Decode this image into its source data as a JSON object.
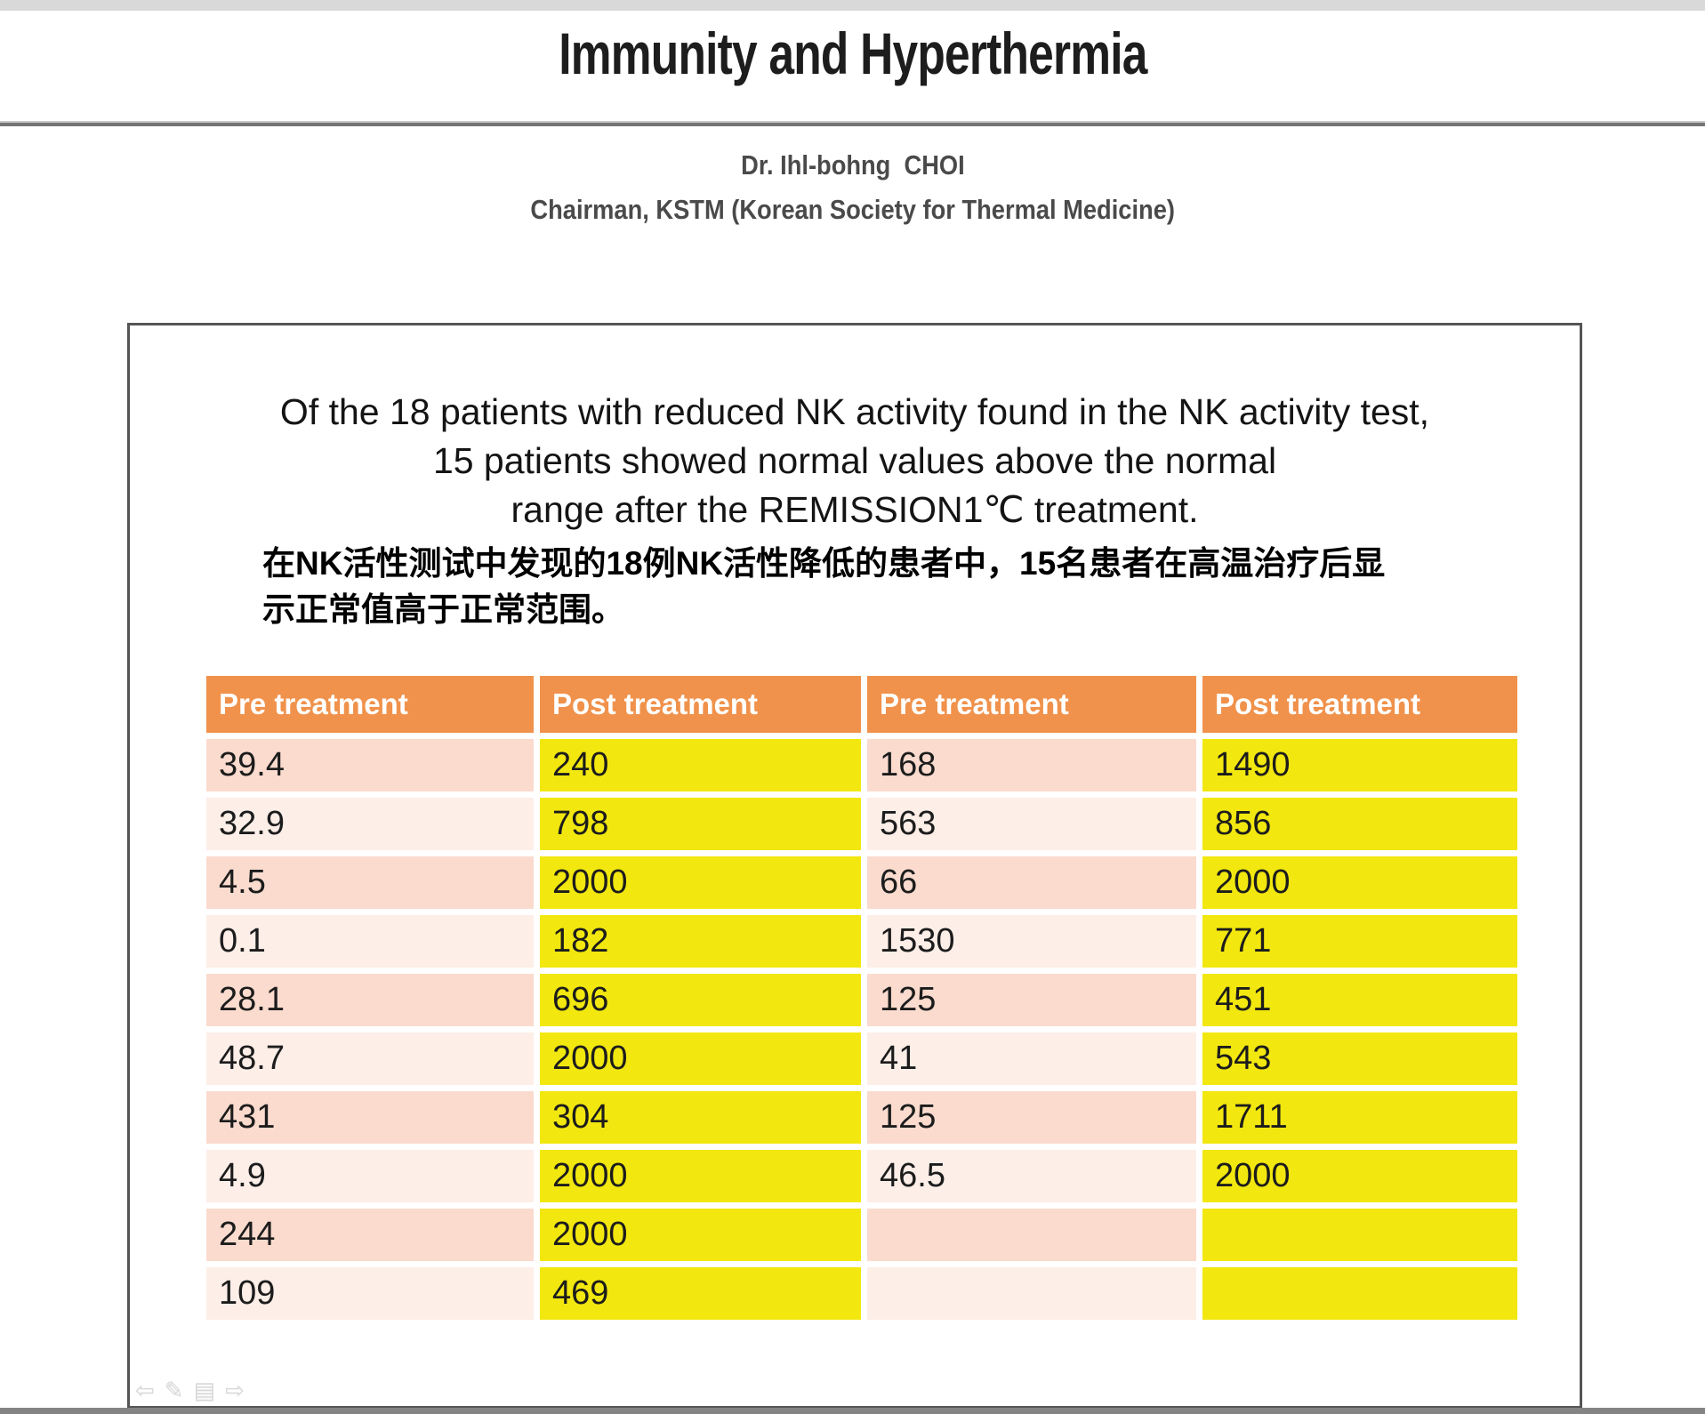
{
  "page": {
    "title": "Immunity and Hyperthermia",
    "author": {
      "name": "Dr. Ihl-bohng  CHOI",
      "affiliation": "Chairman, KSTM (Korean Society for Thermal Medicine)"
    }
  },
  "summary": {
    "english_lines": [
      "Of the 18 patients with reduced NK activity found in the NK activity test,",
      "15 patients showed normal values above the normal",
      "range after the REMISSION1℃ treatment."
    ],
    "chinese_lines": [
      "在NK活性测试中发现的18例NK活性降低的患者中，15名患者在高温治疗后显",
      "示正常值高于正常范围。"
    ]
  },
  "table": {
    "headers": [
      "Pre treatment",
      "Post treatment",
      "Pre treatment",
      "Post treatment"
    ],
    "rows": [
      {
        "cells": [
          {
            "text": "39.4",
            "red": false
          },
          {
            "text": "240",
            "red": false
          },
          {
            "text": "168",
            "red": false
          },
          {
            "text": "1490",
            "red": true
          }
        ]
      },
      {
        "cells": [
          {
            "text": "32.9",
            "red": false
          },
          {
            "text": "798",
            "red": true
          },
          {
            "text": "563",
            "red": false
          },
          {
            "text": "856",
            "red": true
          }
        ]
      },
      {
        "cells": [
          {
            "text": "4.5",
            "red": false
          },
          {
            "text": "2000",
            "red": true
          },
          {
            "text": "66",
            "red": false
          },
          {
            "text": "2000",
            "red": true
          }
        ]
      },
      {
        "cells": [
          {
            "text": "0.1",
            "red": false
          },
          {
            "text": "182",
            "red": false
          },
          {
            "text": "1530",
            "red": false
          },
          {
            "text": "771",
            "red": true
          }
        ]
      },
      {
        "cells": [
          {
            "text": "28.1",
            "red": false
          },
          {
            "text": "696",
            "red": true
          },
          {
            "text": "125",
            "red": false
          },
          {
            "text": "451",
            "red": true
          }
        ]
      },
      {
        "cells": [
          {
            "text": "48.7",
            "red": false
          },
          {
            "text": "2000",
            "red": true
          },
          {
            "text": "41",
            "red": false
          },
          {
            "text": "543",
            "red": true
          }
        ]
      },
      {
        "cells": [
          {
            "text": "431",
            "red": false
          },
          {
            "text": "304",
            "red": false
          },
          {
            "text": "125",
            "red": false
          },
          {
            "text": "1711",
            "red": true
          }
        ]
      },
      {
        "cells": [
          {
            "text": "4.9",
            "red": false
          },
          {
            "text": "2000",
            "red": true
          },
          {
            "text": "46.5",
            "red": false
          },
          {
            "text": "2000",
            "red": true
          }
        ]
      },
      {
        "cells": [
          {
            "text": "244",
            "red": false
          },
          {
            "text": "2000",
            "red": true
          },
          {
            "text": "",
            "red": false
          },
          {
            "text": "",
            "red": false
          }
        ]
      },
      {
        "cells": [
          {
            "text": "109",
            "red": false
          },
          {
            "text": "469",
            "red": true
          },
          {
            "text": "",
            "red": false
          },
          {
            "text": "",
            "red": false
          }
        ]
      }
    ]
  },
  "chart_data": {
    "type": "table",
    "columns": [
      "Pre treatment",
      "Post treatment",
      "Pre treatment",
      "Post treatment"
    ],
    "rows": [
      [
        "39.4",
        "240",
        "168",
        "1490"
      ],
      [
        "32.9",
        "798",
        "563",
        "856"
      ],
      [
        "4.5",
        "2000",
        "66",
        "2000"
      ],
      [
        "0.1",
        "182",
        "1530",
        "771"
      ],
      [
        "28.1",
        "696",
        "125",
        "451"
      ],
      [
        "48.7",
        "2000",
        "41",
        "543"
      ],
      [
        "431",
        "304",
        "125",
        "1711"
      ],
      [
        "4.9",
        "2000",
        "46.5",
        "2000"
      ],
      [
        "244",
        "2000",
        "",
        ""
      ],
      [
        "109",
        "469",
        "",
        ""
      ]
    ]
  },
  "nav_icons": [
    {
      "name": "back-arrow",
      "glyph": "⇦"
    },
    {
      "name": "pen",
      "glyph": "✎"
    },
    {
      "name": "slide-menu",
      "glyph": "▤"
    },
    {
      "name": "forward-arrow",
      "glyph": "⇨"
    }
  ],
  "colors": {
    "header_orange": "#F0924C",
    "row_pink_dark": "#FADBCE",
    "row_pink_light": "#FDEEE8",
    "post_yellow": "#F2E70F",
    "value_red": "#EC1A23",
    "value_black": "#1C1C1C"
  }
}
